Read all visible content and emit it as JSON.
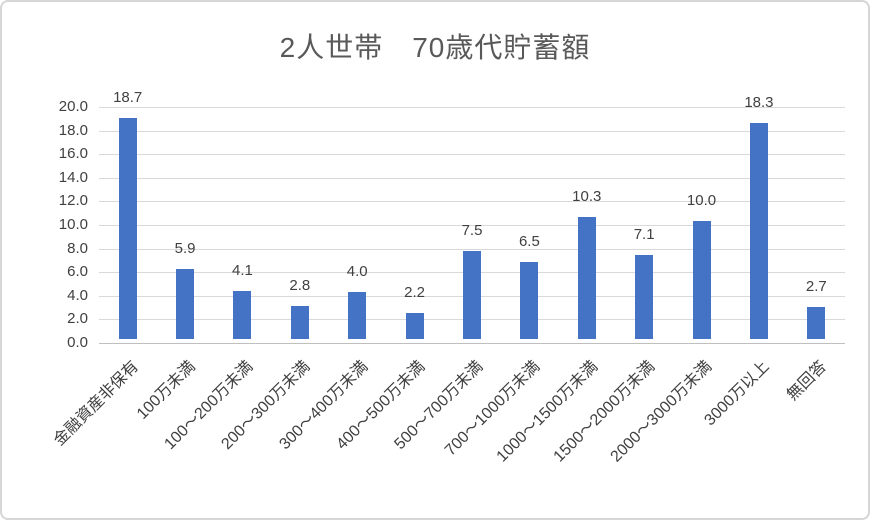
{
  "figure": {
    "title": "2人世帯　70歳代貯蓄額"
  },
  "chart_data": {
    "type": "bar",
    "title": "2人世帯　70歳代貯蓄額",
    "categories": [
      "金融資産非保有",
      "100万未満",
      "100〜200万未満",
      "200〜300万未満",
      "300〜400万未満",
      "400〜500万未満",
      "500〜700万未満",
      "700〜1000万未満",
      "1000〜1500万未満",
      "1500〜2000万未満",
      "2000〜3000万未満",
      "3000万以上",
      "無回答"
    ],
    "values": [
      18.7,
      5.9,
      4.1,
      2.8,
      4.0,
      2.2,
      7.5,
      6.5,
      10.3,
      7.1,
      10.0,
      18.3,
      2.7
    ],
    "value_labels": [
      "18.7",
      "5.9",
      "4.1",
      "2.8",
      "4.0",
      "2.2",
      "7.5",
      "6.5",
      "10.3",
      "7.1",
      "10.0",
      "18.3",
      "2.7"
    ],
    "xlabel": "",
    "ylabel": "",
    "ylim": [
      0,
      20
    ],
    "ytick_step": 2,
    "ytick_labels": [
      "0.0",
      "2.0",
      "4.0",
      "6.0",
      "8.0",
      "10.0",
      "12.0",
      "14.0",
      "16.0",
      "18.0",
      "20.0"
    ],
    "grid": true,
    "legend": "none",
    "x_label_rotation_deg": 45,
    "colors": {
      "bar": "#4472C4",
      "gridline": "#d9d9d9",
      "axis_line": "#bfbfbf",
      "tick_label": "#404040",
      "value_label": "#404040",
      "title": "#595959"
    }
  }
}
